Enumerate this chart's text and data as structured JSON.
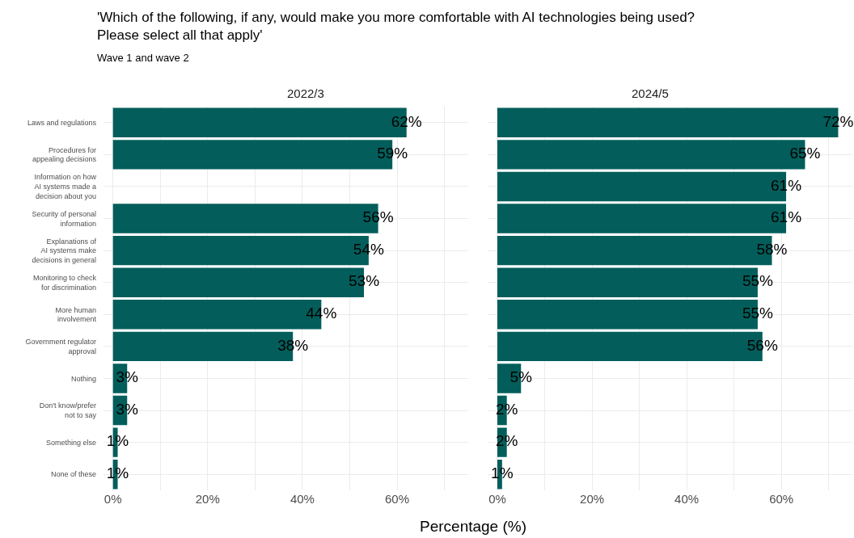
{
  "chart_data": [
    {
      "type": "bar",
      "orientation": "horizontal",
      "title": "2022/3",
      "xlabel": "Percentage (%)",
      "annotations": [
        "'Which of the following, if any, would make you more comfortable with AI technologies being used?\nPlease select all that apply'",
        "Wave 1 and wave 2"
      ],
      "categories": [
        "Laws and regulations",
        "Procedures for\nappealing decisions",
        "Information on how\nAI systems made a\ndecision about you",
        "Security of personal\ninformation",
        "Explanations of\nAI systems make\ndecisions in general",
        "Monitoring to check\nfor discrimination",
        "More human\ninvolvement",
        "Government regulator\napproval",
        "Nothing",
        "Don't know/prefer\nnot to say",
        "Something else",
        "None of these"
      ],
      "values": [
        62,
        59,
        null,
        56,
        54,
        53,
        44,
        38,
        3,
        3,
        1,
        1
      ],
      "value_labels": [
        "62%",
        "59%",
        null,
        "56%",
        "54%",
        "53%",
        "44%",
        "38%",
        "3%",
        "3%",
        "1%",
        "1%"
      ],
      "color": "#035e5b",
      "xlim": [
        -2,
        75
      ],
      "xticks": [
        {
          "value": 0,
          "label": "0%"
        },
        {
          "value": 10,
          "label": null
        },
        {
          "value": 20,
          "label": "20%"
        },
        {
          "value": 30,
          "label": null
        },
        {
          "value": 40,
          "label": "40%"
        },
        {
          "value": 50,
          "label": null
        },
        {
          "value": 60,
          "label": "60%"
        },
        {
          "value": 70,
          "label": null
        }
      ],
      "grid": true,
      "legend": false
    },
    {
      "type": "bar",
      "orientation": "horizontal",
      "title": "2024/5",
      "values": [
        72,
        65,
        61,
        61,
        58,
        55,
        55,
        56,
        5,
        2,
        2,
        1
      ],
      "value_labels": [
        "72%",
        "65%",
        "61%",
        "61%",
        "58%",
        "55%",
        "55%",
        "56%",
        "5%",
        "2%",
        "2%",
        "1%"
      ],
      "color": "#035e5b",
      "xlim": [
        -2,
        75
      ],
      "xticks": [
        {
          "value": 0,
          "label": "0%"
        },
        {
          "value": 10,
          "label": null
        },
        {
          "value": 20,
          "label": "20%"
        },
        {
          "value": 30,
          "label": null
        },
        {
          "value": 40,
          "label": "40%"
        },
        {
          "value": 50,
          "label": null
        },
        {
          "value": 60,
          "label": "60%"
        },
        {
          "value": 70,
          "label": null
        }
      ],
      "grid": true,
      "legend": false,
      "tick_labels": "x"
    }
  ]
}
